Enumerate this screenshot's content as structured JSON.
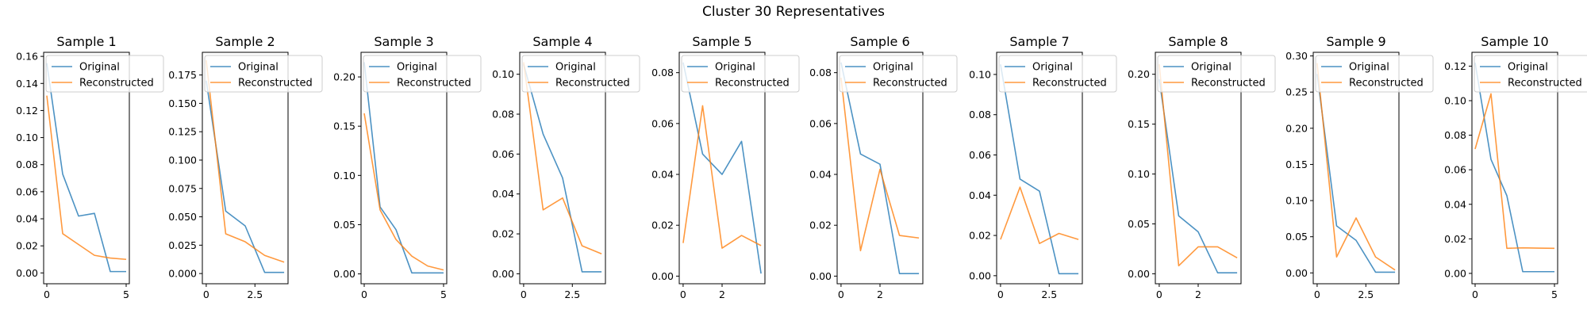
{
  "figure_title": "Cluster 30 Representatives",
  "colors": {
    "original": "#1f77b4",
    "reconstructed": "#ff7f0e",
    "axes": "#000000",
    "legend_border": "#cccccc"
  },
  "chart_data": [
    {
      "type": "line",
      "title": "Sample 1",
      "xlim": [
        -0.2,
        5.2
      ],
      "ylim": [
        -0.008,
        0.163
      ],
      "xticks": [
        0,
        5
      ],
      "xtick_labels": [
        "0",
        "5"
      ],
      "yticks": [
        0.0,
        0.02,
        0.04,
        0.06,
        0.08,
        0.1,
        0.12,
        0.14,
        0.16
      ],
      "ytick_labels": [
        "0.00",
        "0.02",
        "0.04",
        "0.06",
        "0.08",
        "0.10",
        "0.12",
        "0.14",
        "0.16"
      ],
      "legend_position": "upper-right",
      "series": [
        {
          "name": "Original",
          "x": [
            0,
            1,
            2,
            3,
            4,
            5
          ],
          "y": [
            0.155,
            0.073,
            0.042,
            0.044,
            0.001,
            0.001
          ]
        },
        {
          "name": "Reconstructed",
          "x": [
            0,
            1,
            2,
            3,
            4,
            5
          ],
          "y": [
            0.131,
            0.029,
            0.021,
            0.013,
            0.011,
            0.01
          ]
        }
      ]
    },
    {
      "type": "line",
      "title": "Sample 2",
      "xlim": [
        -0.2,
        4.2
      ],
      "ylim": [
        -0.009,
        0.195
      ],
      "xticks": [
        0,
        2.5
      ],
      "xtick_labels": [
        "0",
        "2.5"
      ],
      "yticks": [
        0.0,
        0.025,
        0.05,
        0.075,
        0.1,
        0.125,
        0.15,
        0.175
      ],
      "ytick_labels": [
        "0.000",
        "0.025",
        "0.050",
        "0.075",
        "0.100",
        "0.125",
        "0.150",
        "0.175"
      ],
      "legend_position": "upper-right",
      "series": [
        {
          "name": "Original",
          "x": [
            0,
            1,
            2,
            3,
            4
          ],
          "y": [
            0.17,
            0.055,
            0.042,
            0.001,
            0.001
          ]
        },
        {
          "name": "Reconstructed",
          "x": [
            0,
            1,
            2,
            3,
            4
          ],
          "y": [
            0.188,
            0.035,
            0.028,
            0.016,
            0.01
          ]
        }
      ]
    },
    {
      "type": "line",
      "title": "Sample 3",
      "xlim": [
        -0.2,
        5.2
      ],
      "ylim": [
        -0.01,
        0.225
      ],
      "xticks": [
        0,
        5
      ],
      "xtick_labels": [
        "0",
        "5"
      ],
      "yticks": [
        0.0,
        0.05,
        0.1,
        0.15,
        0.2
      ],
      "ytick_labels": [
        "0.00",
        "0.05",
        "0.10",
        "0.15",
        "0.20"
      ],
      "legend_position": "upper-right",
      "series": [
        {
          "name": "Original",
          "x": [
            0,
            1,
            2,
            3,
            4,
            5
          ],
          "y": [
            0.215,
            0.068,
            0.045,
            0.001,
            0.001,
            0.001
          ]
        },
        {
          "name": "Reconstructed",
          "x": [
            0,
            1,
            2,
            3,
            4,
            5
          ],
          "y": [
            0.163,
            0.065,
            0.035,
            0.018,
            0.008,
            0.004
          ]
        }
      ]
    },
    {
      "type": "line",
      "title": "Sample 4",
      "xlim": [
        -0.2,
        4.2
      ],
      "ylim": [
        -0.005,
        0.111
      ],
      "xticks": [
        0,
        2.5
      ],
      "xtick_labels": [
        "0",
        "2.5"
      ],
      "yticks": [
        0.0,
        0.02,
        0.04,
        0.06,
        0.08,
        0.1
      ],
      "ytick_labels": [
        "0.00",
        "0.02",
        "0.04",
        "0.06",
        "0.08",
        "0.10"
      ],
      "legend_position": "upper-right",
      "series": [
        {
          "name": "Original",
          "x": [
            0,
            1,
            2,
            3,
            4
          ],
          "y": [
            0.105,
            0.07,
            0.048,
            0.001,
            0.001
          ]
        },
        {
          "name": "Reconstructed",
          "x": [
            0,
            1,
            2,
            3,
            4
          ],
          "y": [
            0.106,
            0.032,
            0.038,
            0.014,
            0.01
          ]
        }
      ]
    },
    {
      "type": "line",
      "title": "Sample 5",
      "xlim": [
        -0.2,
        4.2
      ],
      "ylim": [
        -0.003,
        0.088
      ],
      "xticks": [
        0,
        2
      ],
      "xtick_labels": [
        "0",
        "2"
      ],
      "yticks": [
        0.0,
        0.02,
        0.04,
        0.06,
        0.08
      ],
      "ytick_labels": [
        "0.00",
        "0.02",
        "0.04",
        "0.06",
        "0.08"
      ],
      "legend_position": "upper-right",
      "series": [
        {
          "name": "Original",
          "x": [
            0,
            1,
            2,
            3,
            4
          ],
          "y": [
            0.084,
            0.048,
            0.04,
            0.053,
            0.001
          ]
        },
        {
          "name": "Reconstructed",
          "x": [
            0,
            1,
            2,
            3,
            4
          ],
          "y": [
            0.013,
            0.067,
            0.011,
            0.016,
            0.012
          ]
        }
      ]
    },
    {
      "type": "line",
      "title": "Sample 6",
      "xlim": [
        -0.2,
        4.2
      ],
      "ylim": [
        -0.003,
        0.088
      ],
      "xticks": [
        0,
        2
      ],
      "xtick_labels": [
        "0",
        "2"
      ],
      "yticks": [
        0.0,
        0.02,
        0.04,
        0.06,
        0.08
      ],
      "ytick_labels": [
        "0.00",
        "0.02",
        "0.04",
        "0.06",
        "0.08"
      ],
      "legend_position": "upper-right",
      "series": [
        {
          "name": "Original",
          "x": [
            0,
            1,
            2,
            3,
            4
          ],
          "y": [
            0.084,
            0.048,
            0.044,
            0.001,
            0.001
          ]
        },
        {
          "name": "Reconstructed",
          "x": [
            0,
            1,
            2,
            3,
            4
          ],
          "y": [
            0.078,
            0.01,
            0.042,
            0.016,
            0.015
          ]
        }
      ]
    },
    {
      "type": "line",
      "title": "Sample 7",
      "xlim": [
        -0.2,
        4.2
      ],
      "ylim": [
        -0.004,
        0.111
      ],
      "xticks": [
        0,
        2.5
      ],
      "xtick_labels": [
        "0",
        "2.5"
      ],
      "yticks": [
        0.0,
        0.02,
        0.04,
        0.06,
        0.08,
        0.1
      ],
      "ytick_labels": [
        "0.00",
        "0.02",
        "0.04",
        "0.06",
        "0.08",
        "0.10"
      ],
      "legend_position": "upper-right",
      "series": [
        {
          "name": "Original",
          "x": [
            0,
            1,
            2,
            3,
            4
          ],
          "y": [
            0.105,
            0.048,
            0.042,
            0.001,
            0.001
          ]
        },
        {
          "name": "Reconstructed",
          "x": [
            0,
            1,
            2,
            3,
            4
          ],
          "y": [
            0.018,
            0.044,
            0.016,
            0.021,
            0.018
          ]
        }
      ]
    },
    {
      "type": "line",
      "title": "Sample 8",
      "xlim": [
        -0.2,
        4.2
      ],
      "ylim": [
        -0.01,
        0.222
      ],
      "xticks": [
        0,
        2
      ],
      "xtick_labels": [
        "0",
        "2"
      ],
      "yticks": [
        0.0,
        0.05,
        0.1,
        0.15,
        0.2
      ],
      "ytick_labels": [
        "0.00",
        "0.05",
        "0.10",
        "0.15",
        "0.20"
      ],
      "legend_position": "upper-right",
      "series": [
        {
          "name": "Original",
          "x": [
            0,
            1,
            2,
            3,
            4
          ],
          "y": [
            0.195,
            0.058,
            0.042,
            0.001,
            0.001
          ]
        },
        {
          "name": "Reconstructed",
          "x": [
            0,
            1,
            2,
            3,
            4
          ],
          "y": [
            0.21,
            0.008,
            0.027,
            0.027,
            0.016
          ]
        }
      ]
    },
    {
      "type": "line",
      "title": "Sample 9",
      "xlim": [
        -0.2,
        4.2
      ],
      "ylim": [
        -0.015,
        0.305
      ],
      "xticks": [
        0,
        2.5
      ],
      "xtick_labels": [
        "0",
        "2.5"
      ],
      "yticks": [
        0.0,
        0.05,
        0.1,
        0.15,
        0.2,
        0.25,
        0.3
      ],
      "ytick_labels": [
        "0.00",
        "0.05",
        "0.10",
        "0.15",
        "0.20",
        "0.25",
        "0.30"
      ],
      "legend_position": "upper-right",
      "series": [
        {
          "name": "Original",
          "x": [
            0,
            1,
            2,
            3,
            4
          ],
          "y": [
            0.275,
            0.065,
            0.045,
            0.001,
            0.001
          ]
        },
        {
          "name": "Reconstructed",
          "x": [
            0,
            1,
            2,
            3,
            4
          ],
          "y": [
            0.29,
            0.022,
            0.076,
            0.022,
            0.004
          ]
        }
      ]
    },
    {
      "type": "line",
      "title": "Sample 10",
      "xlim": [
        -0.2,
        5.2
      ],
      "ylim": [
        -0.006,
        0.128
      ],
      "xticks": [
        0,
        5
      ],
      "xtick_labels": [
        "0",
        "5"
      ],
      "yticks": [
        0.0,
        0.02,
        0.04,
        0.06,
        0.08,
        0.1,
        0.12
      ],
      "ytick_labels": [
        "0.00",
        "0.02",
        "0.04",
        "0.06",
        "0.08",
        "0.10",
        "0.12"
      ],
      "legend_position": "upper-right",
      "series": [
        {
          "name": "Original",
          "x": [
            0,
            1,
            2,
            3,
            4,
            5
          ],
          "y": [
            0.122,
            0.066,
            0.045,
            0.001,
            0.001,
            0.001
          ]
        },
        {
          "name": "Reconstructed",
          "x": [
            0,
            1,
            2,
            3,
            4,
            5
          ],
          "y": [
            0.072,
            0.104,
            0.0145,
            0.0148,
            0.0146,
            0.0145
          ]
        }
      ]
    }
  ]
}
